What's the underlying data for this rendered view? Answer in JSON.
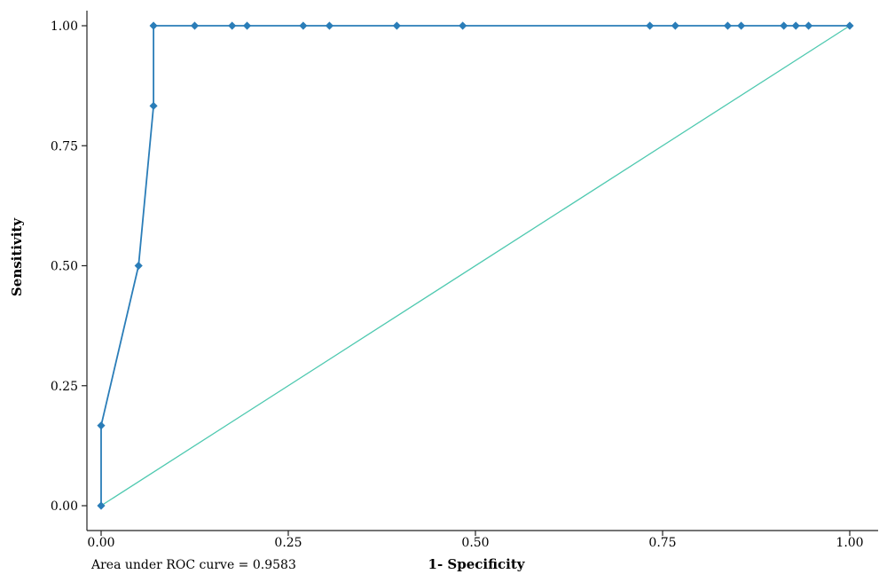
{
  "chart_data": {
    "type": "line",
    "xlabel": "1- Specificity",
    "ylabel": "Sensitivity",
    "xlim": [
      0,
      1
    ],
    "ylim": [
      0,
      1
    ],
    "xticks": [
      "0.00",
      "0.25",
      "0.50",
      "0.75",
      "1.00"
    ],
    "yticks": [
      "0.00",
      "0.25",
      "0.50",
      "0.75",
      "1.00"
    ],
    "annotation": "Area under ROC curve = 0.9583",
    "grid": false,
    "legend": "none",
    "series": [
      {
        "role": "roc-curve",
        "color": "#2a7db8",
        "markers": true,
        "x": [
          0.0,
          0.0,
          0.05,
          0.07,
          0.07,
          0.125,
          0.175,
          0.195,
          0.27,
          0.305,
          0.395,
          0.483,
          0.733,
          0.767,
          0.837,
          0.855,
          0.912,
          0.928,
          0.945,
          1.0
        ],
        "y": [
          0.0,
          0.167,
          0.5,
          0.833,
          1.0,
          1.0,
          1.0,
          1.0,
          1.0,
          1.0,
          1.0,
          1.0,
          1.0,
          1.0,
          1.0,
          1.0,
          1.0,
          1.0,
          1.0,
          1.0
        ]
      },
      {
        "role": "reference-line",
        "color": "#4fc9b0",
        "markers": false,
        "x": [
          0,
          1
        ],
        "y": [
          0,
          1
        ]
      }
    ]
  }
}
